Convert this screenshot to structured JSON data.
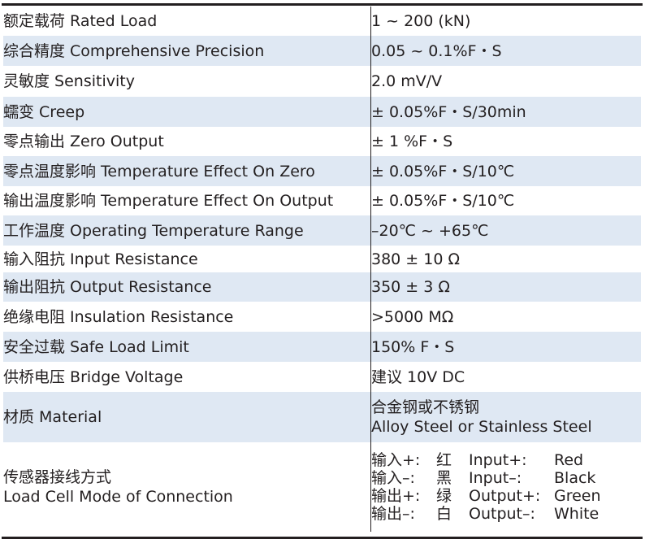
{
  "rows": [
    {
      "label": "额定载荷 Rated Load",
      "value": "1 ~ 200 (kN)"
    },
    {
      "label": "综合精度 Comprehensive Precision",
      "value": "0.05 ~ 0.1%F・S"
    },
    {
      "label": "灵敏度 Sensitivity",
      "value": "2.0 mV/V"
    },
    {
      "label": "蠕变 Creep",
      "value": "± 0.05%F・S/30min"
    },
    {
      "label": "零点输出 Zero Output",
      "value": "± 1 %F・S"
    },
    {
      "label": "零点温度影响 Temperature Effect On Zero",
      "value": "± 0.05%F・S/10℃"
    },
    {
      "label": "输出温度影响 Temperature Effect On Output",
      "value": "± 0.05%F・S/10℃"
    },
    {
      "label": "工作温度 Operating Temperature Range",
      "value": "–20℃ ~ +65℃"
    },
    {
      "label": "输入阻抗 Input Resistance",
      "value": "380 ± 10 Ω"
    },
    {
      "label": "输出阻抗 Output Resistance",
      "value": "350 ± 3 Ω"
    },
    {
      "label": "绝缘电阻 Insulation Resistance",
      "value": ">5000 MΩ"
    },
    {
      "label": "安全过载 Safe Load Limit",
      "value": "150% F・S"
    },
    {
      "label": "供桥电压 Bridge Voltage",
      "value": "建议 10V DC"
    }
  ],
  "material": {
    "label": "材质 Material",
    "value_cn": "合金钢或不锈钢",
    "value_en": "Alloy Steel or Stainless Steel"
  },
  "connection": {
    "label_cn": "传感器接线方式",
    "label_en": "Load Cell Mode of Connection",
    "wiring": [
      {
        "cn_terminal": "输入+:",
        "cn_color": "红",
        "en_terminal": "Input+:",
        "en_color": "Red"
      },
      {
        "cn_terminal": "输入–:",
        "cn_color": "黑",
        "en_terminal": "Input–:",
        "en_color": "Black"
      },
      {
        "cn_terminal": "输出+:",
        "cn_color": "绿",
        "en_terminal": "Output+:",
        "en_color": "Green"
      },
      {
        "cn_terminal": "输出–:",
        "cn_color": "白",
        "en_terminal": "Output–:",
        "en_color": "White"
      }
    ]
  },
  "colors": {
    "shade": "#dfe8f3",
    "text": "#231f20",
    "rule": "#231f20"
  }
}
